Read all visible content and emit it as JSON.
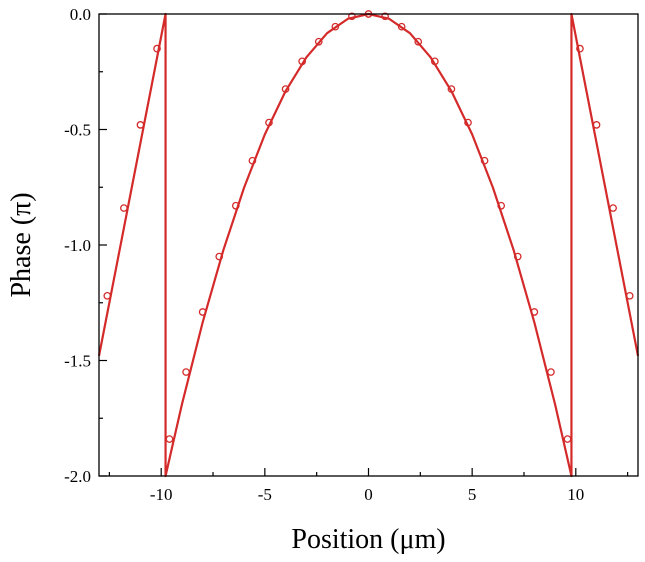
{
  "chart_data": {
    "type": "line",
    "title": "",
    "xlabel": "Position (μm)",
    "ylabel": "Phase (π)",
    "xlim": [
      -13,
      13
    ],
    "ylim": [
      -2.0,
      0.0
    ],
    "x_ticks": [
      -10,
      -5,
      0,
      5,
      10
    ],
    "x_tick_labels": [
      "-10",
      "-5",
      "0",
      "5",
      "10"
    ],
    "y_ticks": [
      0.0,
      -0.5,
      -1.0,
      -1.5,
      -2.0
    ],
    "y_tick_labels": [
      "0.0",
      "-0.5",
      "-1.0",
      "-1.5",
      "-2.0"
    ],
    "grid": false,
    "legend": "none",
    "colors": {
      "line": "#d42a2a",
      "axis": "#000000"
    },
    "series": [
      {
        "line_points": {
          "x": [
            -13.0,
            -9.79,
            -9.79,
            -9.0,
            -8.0,
            -7.0,
            -6.0,
            -5.0,
            -4.0,
            -3.0,
            -2.0,
            -1.0,
            0.0,
            1.0,
            2.0,
            3.0,
            4.0,
            5.0,
            6.0,
            7.0,
            8.0,
            9.0,
            9.79,
            9.79,
            13.0
          ],
          "y": [
            -1.48,
            0.0,
            -2.0,
            -1.69,
            -1.335,
            -1.022,
            -0.751,
            -0.521,
            -0.334,
            -0.188,
            -0.083,
            -0.021,
            0.0,
            -0.021,
            -0.083,
            -0.188,
            -0.334,
            -0.521,
            -0.751,
            -1.022,
            -1.335,
            -1.69,
            -2.0,
            0.0,
            -1.48
          ]
        },
        "marker_points": {
          "x": [
            -12.6,
            -11.8,
            -11.0,
            -10.2,
            -9.6,
            -8.8,
            -8.0,
            -7.2,
            -6.4,
            -5.6,
            -4.8,
            -4.0,
            -3.2,
            -2.4,
            -1.6,
            -0.8,
            0.0,
            0.8,
            1.6,
            2.4,
            3.2,
            4.0,
            4.8,
            5.6,
            6.4,
            7.2,
            8.0,
            8.8,
            9.6,
            10.2,
            11.0,
            11.8,
            12.6
          ],
          "y": [
            -1.22,
            -0.84,
            -0.48,
            -0.15,
            -1.84,
            -1.55,
            -1.29,
            -1.05,
            -0.83,
            -0.635,
            -0.47,
            -0.325,
            -0.205,
            -0.12,
            -0.055,
            -0.01,
            0.0,
            -0.01,
            -0.055,
            -0.12,
            -0.205,
            -0.325,
            -0.47,
            -0.635,
            -0.83,
            -1.05,
            -1.29,
            -1.55,
            -1.84,
            -0.15,
            -0.48,
            -0.84,
            -1.22
          ]
        }
      }
    ]
  }
}
